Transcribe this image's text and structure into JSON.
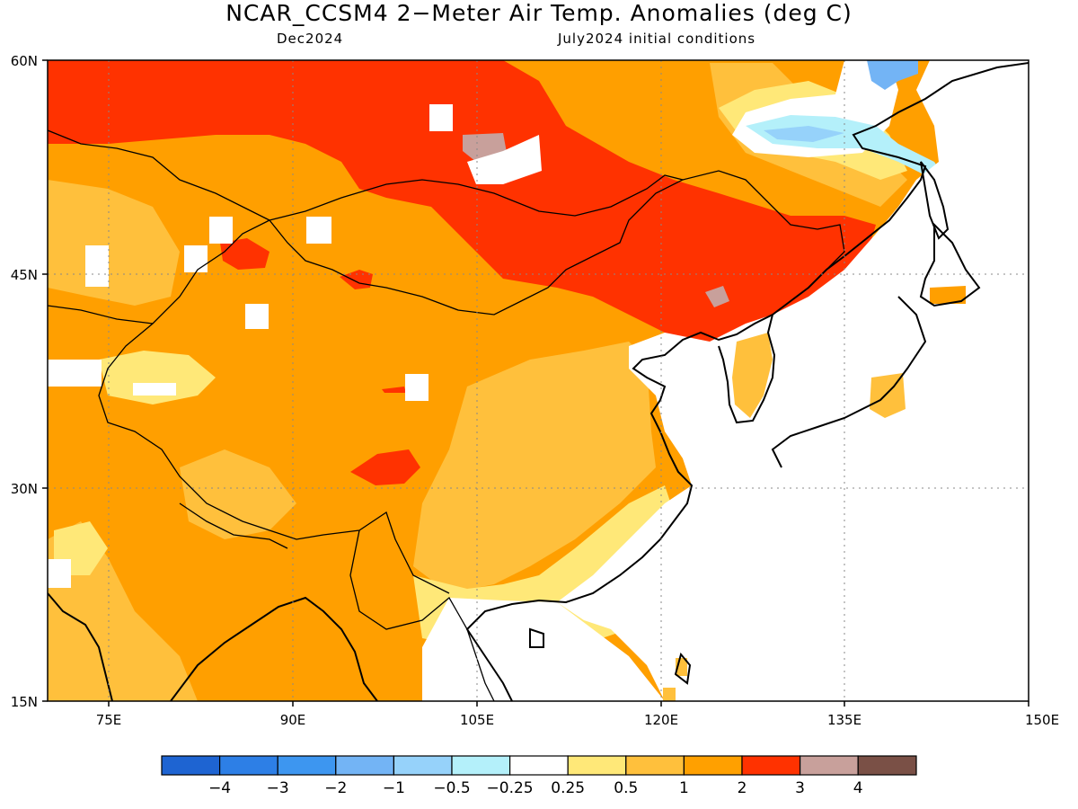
{
  "header": {
    "title": "NCAR_CCSM4 2−Meter Air Temp. Anomalies (deg C)",
    "valid_month": "Dec2024",
    "init_text": "July2024 initial conditions"
  },
  "map": {
    "lon_range": [
      70,
      150
    ],
    "lat_range": [
      15,
      60
    ],
    "lon_ticks": [
      "75E",
      "90E",
      "105E",
      "120E",
      "135E",
      "150E"
    ],
    "lat_ticks": [
      "60N",
      "45N",
      "30N",
      "15N"
    ],
    "grid": true,
    "background_color": "#ff9f00"
  },
  "colorbar": {
    "colors": [
      "#1e64d2",
      "#2d7fe6",
      "#3d96f0",
      "#73b4f5",
      "#96d2fa",
      "#b4f0fa",
      "#ffffff",
      "#ffe878",
      "#ffc03c",
      "#ffa000",
      "#ff3200",
      "#c8a09b",
      "#7a5046"
    ],
    "labels": [
      "−4",
      "−3",
      "−2",
      "−1",
      "−0.5",
      "−0.25",
      "0.25",
      "0.5",
      "1",
      "2",
      "3",
      "4"
    ]
  }
}
